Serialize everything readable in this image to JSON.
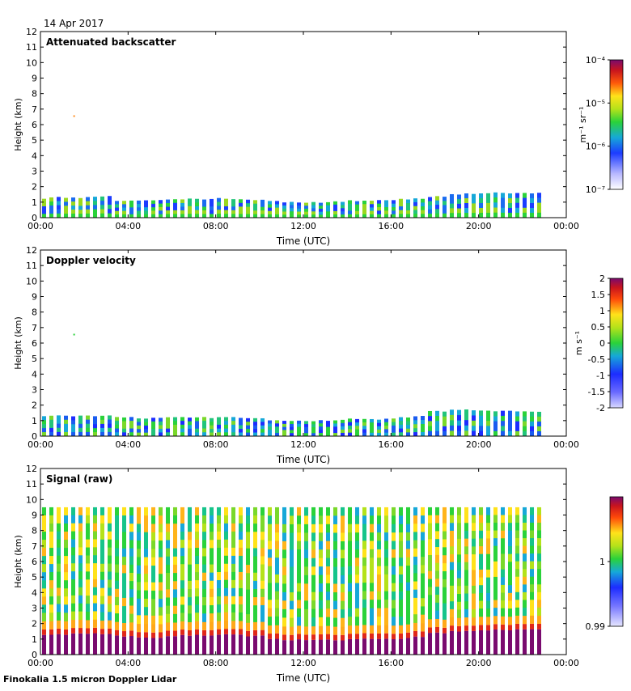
{
  "figure": {
    "date": "14 Apr 2017",
    "footer": "Finokalia 1.5 micron Doppler Lidar",
    "colors": {
      "text": "#000000",
      "axis": "#000000",
      "background": "#ffffff"
    }
  },
  "chart_data": [
    {
      "type": "heatmap",
      "title": "Attenuated backscatter",
      "xlabel": "Time (UTC)",
      "ylabel": "Height (km)",
      "xlim": [
        0,
        24
      ],
      "ylim": [
        0,
        12
      ],
      "x_ticks": [
        "00:00",
        "04:00",
        "08:00",
        "12:00",
        "16:00",
        "20:00",
        "00:00"
      ],
      "y_ticks": [
        "0",
        "1",
        "2",
        "3",
        "4",
        "5",
        "6",
        "7",
        "8",
        "9",
        "10",
        "11",
        "12"
      ],
      "colorbar": {
        "unit": "m⁻¹ sr⁻¹",
        "scale": "log",
        "ticks": [
          "10⁻⁷",
          "10⁻⁶",
          "10⁻⁵",
          "10⁻⁴"
        ],
        "range": [
          1e-07,
          0.0001
        ]
      },
      "layer_top_km": [
        1.25,
        1.3,
        1.3,
        1.35,
        1.4,
        1.1,
        1.1,
        1.15,
        1.2,
        1.2,
        1.2,
        1.25,
        1.2,
        1.15,
        1.1,
        1.0,
        1.0,
        1.0,
        1.05,
        1.1,
        1.1,
        1.1,
        1.2,
        1.25,
        1.35,
        1.5,
        1.55,
        1.55,
        1.6,
        1.6,
        1.6,
        1.55,
        1.55
      ],
      "data_end_hour": 23.0,
      "note": "single echo near 6.6 km at ~01:30"
    },
    {
      "type": "heatmap",
      "title": "Doppler velocity",
      "xlabel": "Time (UTC)",
      "ylabel": "Height (km)",
      "xlim": [
        0,
        24
      ],
      "ylim": [
        0,
        12
      ],
      "x_ticks": [
        "00:00",
        "04:00",
        "08:00",
        "12:00",
        "16:00",
        "20:00",
        "00:00"
      ],
      "y_ticks": [
        "0",
        "1",
        "2",
        "3",
        "4",
        "5",
        "6",
        "7",
        "8",
        "9",
        "10",
        "11",
        "12"
      ],
      "colorbar": {
        "unit": "m s⁻¹",
        "scale": "linear",
        "ticks": [
          "-2",
          "-1.5",
          "-1",
          "-0.5",
          "0",
          "0.5",
          "1",
          "1.5",
          "2"
        ],
        "range": [
          -2,
          2
        ]
      },
      "layer_top_km": [
        1.25,
        1.3,
        1.3,
        1.3,
        1.3,
        1.2,
        1.15,
        1.15,
        1.2,
        1.2,
        1.2,
        1.25,
        1.2,
        1.15,
        1.05,
        1.0,
        1.0,
        1.0,
        1.05,
        1.1,
        1.1,
        1.1,
        1.2,
        1.3,
        1.6,
        1.7,
        1.7,
        1.65,
        1.6,
        1.6,
        1.6,
        1.55,
        1.55
      ],
      "data_end_hour": 23.0,
      "note": "single echo near 6.6 km at ~01:30"
    },
    {
      "type": "heatmap",
      "title": "Signal (raw)",
      "xlabel": "Time (UTC)",
      "ylabel": "Height (km)",
      "xlim": [
        0,
        24
      ],
      "ylim": [
        0,
        12
      ],
      "x_ticks": [
        "00:00",
        "04:00",
        "08:00",
        "12:00",
        "16:00",
        "20:00",
        "00:00"
      ],
      "y_ticks": [
        "0",
        "1",
        "2",
        "3",
        "4",
        "5",
        "6",
        "7",
        "8",
        "9",
        "10",
        "11",
        "12"
      ],
      "colorbar": {
        "unit": "",
        "scale": "linear",
        "ticks": [
          "0.99",
          "1"
        ],
        "range": [
          0.99,
          1.01
        ]
      },
      "layer_top_km": [
        1.3,
        1.3,
        1.35,
        1.35,
        1.35,
        1.2,
        1.1,
        1.1,
        1.2,
        1.25,
        1.25,
        1.3,
        1.3,
        1.2,
        1.0,
        0.95,
        0.95,
        0.95,
        0.95,
        1.0,
        1.0,
        1.0,
        1.05,
        1.15,
        1.4,
        1.5,
        1.55,
        1.55,
        1.6,
        1.6,
        1.6,
        1.6,
        1.6
      ],
      "data_top_km": 9.5,
      "data_end_hour": 23.0
    }
  ]
}
